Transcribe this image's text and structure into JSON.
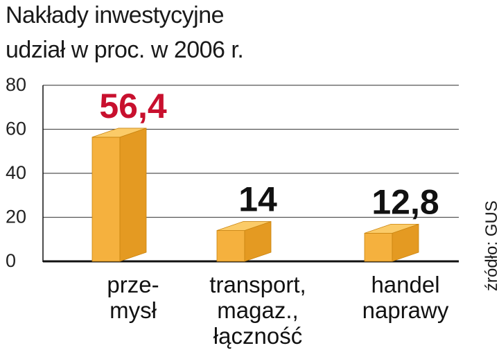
{
  "header": {
    "title": "Nakłady inwestycyjne",
    "subtitle": "udział w proc. w 2006 r."
  },
  "source": "źródło: GUS",
  "colors": {
    "bar_front": "#f5b13e",
    "bar_side": "#e49a22",
    "bar_top": "#fbcb68",
    "highlight_value": "#c8102e",
    "value_text": "#111111",
    "grid": "#555555"
  },
  "chart_data": {
    "type": "bar",
    "style": "3d-block",
    "categories": [
      [
        "prze-",
        "mysł"
      ],
      [
        "transport,",
        "magaz.,",
        "łączność"
      ],
      [
        "handel",
        "naprawy"
      ]
    ],
    "values": [
      56.4,
      14,
      12.8
    ],
    "value_labels": [
      "56,4",
      "14",
      "12,8"
    ],
    "highlight_index": 0,
    "ylim": [
      0,
      80
    ],
    "yticks": [
      0,
      20,
      40,
      60,
      80
    ],
    "grid": true,
    "title": "Nakłady inwestycyjne",
    "subtitle": "udział w proc. w 2006 r."
  }
}
